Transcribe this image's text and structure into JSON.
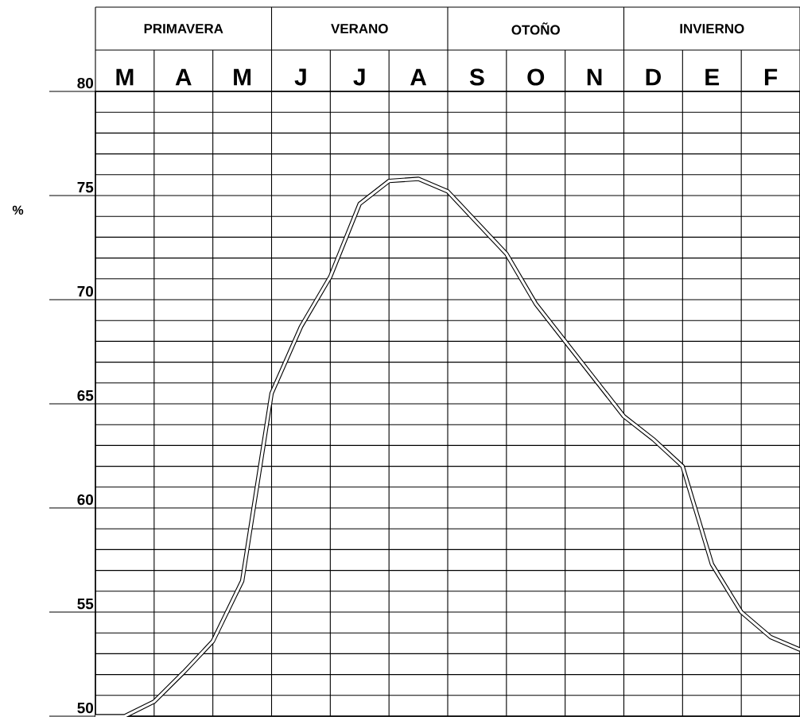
{
  "chart_data": {
    "type": "line",
    "ylabel": "%",
    "grid": true,
    "color": "#000000",
    "annotations": [
      "PRIMAVERA",
      "VERANO",
      "OTOÑO",
      "INVIERNO"
    ],
    "categories": [
      null,
      "M",
      null,
      "A",
      null,
      "M",
      null,
      "J",
      null,
      "J",
      null,
      "A",
      null,
      "S",
      null,
      "O",
      null,
      "N",
      null,
      "D",
      null,
      "E",
      null,
      "F",
      null
    ],
    "values": [
      50.0,
      50.0,
      50.7,
      52.1,
      53.6,
      56.5,
      65.5,
      68.7,
      71.1,
      74.6,
      75.7,
      75.8,
      75.2,
      73.7,
      72.2,
      69.8,
      68.0,
      66.2,
      64.4,
      63.3,
      62.0,
      57.3,
      55.0,
      53.8,
      53.2
    ],
    "ylim": [
      50,
      80
    ],
    "yticks": [
      50,
      {
        "value": 51,
        "label": null
      },
      {
        "value": 52,
        "label": null
      },
      {
        "value": 53,
        "label": null
      },
      {
        "value": 54,
        "label": null
      },
      55,
      {
        "value": 56,
        "label": null
      },
      {
        "value": 57,
        "label": null
      },
      {
        "value": 58,
        "label": null
      },
      {
        "value": 59,
        "label": null
      },
      60,
      {
        "value": 61,
        "label": null
      },
      {
        "value": 62,
        "label": null
      },
      {
        "value": 63,
        "label": null
      },
      {
        "value": 64,
        "label": null
      },
      65,
      {
        "value": 66,
        "label": null
      },
      {
        "value": 67,
        "label": null
      },
      {
        "value": 68,
        "label": null
      },
      {
        "value": 69,
        "label": null
      },
      70,
      {
        "value": 71,
        "label": null
      },
      {
        "value": 72,
        "label": null
      },
      {
        "value": 73,
        "label": null
      },
      {
        "value": 74,
        "label": null
      },
      75,
      {
        "value": 76,
        "label": null
      },
      {
        "value": 77,
        "label": null
      },
      {
        "value": 78,
        "label": null
      },
      {
        "value": 79,
        "label": null
      },
      80
    ]
  }
}
